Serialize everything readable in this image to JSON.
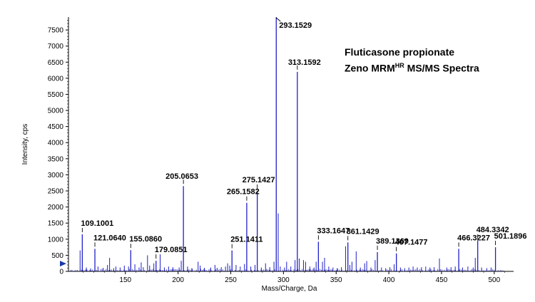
{
  "annotation": {
    "line1": "Fluticasone propionate",
    "line2_pre": "Zeno MRM",
    "line2_sup": "HR",
    "line2_post": " MS/MS Spectra"
  },
  "chart_data": {
    "type": "bar",
    "xlabel": "Mass/Charge, Da",
    "ylabel": "Intensity, cps",
    "xlim": [
      96,
      515
    ],
    "ylim": [
      0,
      7900
    ],
    "x_ticks": [
      150,
      200,
      250,
      300,
      350,
      400,
      450,
      500
    ],
    "y_ticks": [
      0,
      500,
      1000,
      1500,
      2000,
      2500,
      3000,
      3500,
      4000,
      4500,
      5000,
      5500,
      6000,
      6500,
      7000,
      7500
    ],
    "colors": {
      "peaks": "#2020c8",
      "labels": "#000000"
    },
    "labeled_peaks": [
      {
        "mz": 109.1001,
        "label": "109.1001",
        "intensity": 1150
      },
      {
        "mz": 121.064,
        "label": "121.0640",
        "intensity": 700
      },
      {
        "mz": 155.086,
        "label": "155.0860",
        "intensity": 660
      },
      {
        "mz": 179.0851,
        "label": "179.0851",
        "intensity": 330
      },
      {
        "mz": 205.0653,
        "label": "205.0653",
        "intensity": 2650
      },
      {
        "mz": 251.1411,
        "label": "251.1411",
        "intensity": 650
      },
      {
        "mz": 265.1582,
        "label": "265.1582",
        "intensity": 2130
      },
      {
        "mz": 275.1427,
        "label": "275.1427",
        "intensity": 2500
      },
      {
        "mz": 293.1529,
        "label": "293.1529",
        "intensity": 7900
      },
      {
        "mz": 313.1592,
        "label": "313.1592",
        "intensity": 6200
      },
      {
        "mz": 333.1647,
        "label": "333.1647",
        "intensity": 920
      },
      {
        "mz": 361.1429,
        "label": "361.1429",
        "intensity": 900
      },
      {
        "mz": 389.1369,
        "label": "389.1369",
        "intensity": 600
      },
      {
        "mz": 407.1477,
        "label": "407.1477",
        "intensity": 560
      },
      {
        "mz": 466.3227,
        "label": "466.3227",
        "intensity": 700
      },
      {
        "mz": 484.3342,
        "label": "484.3342",
        "intensity": 950
      },
      {
        "mz": 501.1896,
        "label": "501.1896",
        "intensity": 750
      }
    ],
    "unlabeled_peaks": [
      {
        "mz": 107.0,
        "intensity": 650
      },
      {
        "mz": 113.0,
        "intensity": 120
      },
      {
        "mz": 117.0,
        "intensity": 90
      },
      {
        "mz": 124.0,
        "intensity": 150
      },
      {
        "mz": 129.0,
        "intensity": 110
      },
      {
        "mz": 133.0,
        "intensity": 200
      },
      {
        "mz": 135.0,
        "intensity": 420
      },
      {
        "mz": 139.0,
        "intensity": 100
      },
      {
        "mz": 141.0,
        "intensity": 150
      },
      {
        "mz": 145.0,
        "intensity": 120
      },
      {
        "mz": 149.0,
        "intensity": 180
      },
      {
        "mz": 153.0,
        "intensity": 150
      },
      {
        "mz": 159.0,
        "intensity": 220
      },
      {
        "mz": 163.0,
        "intensity": 120
      },
      {
        "mz": 165.0,
        "intensity": 280
      },
      {
        "mz": 167.0,
        "intensity": 130
      },
      {
        "mz": 171.0,
        "intensity": 500
      },
      {
        "mz": 173.0,
        "intensity": 180
      },
      {
        "mz": 177.0,
        "intensity": 250
      },
      {
        "mz": 183.0,
        "intensity": 530
      },
      {
        "mz": 187.0,
        "intensity": 120
      },
      {
        "mz": 191.0,
        "intensity": 150
      },
      {
        "mz": 195.0,
        "intensity": 130
      },
      {
        "mz": 201.0,
        "intensity": 120
      },
      {
        "mz": 203.0,
        "intensity": 330
      },
      {
        "mz": 209.0,
        "intensity": 150
      },
      {
        "mz": 213.0,
        "intensity": 100
      },
      {
        "mz": 219.0,
        "intensity": 300
      },
      {
        "mz": 221.0,
        "intensity": 180
      },
      {
        "mz": 225.0,
        "intensity": 110
      },
      {
        "mz": 231.0,
        "intensity": 120
      },
      {
        "mz": 235.0,
        "intensity": 200
      },
      {
        "mz": 237.0,
        "intensity": 110
      },
      {
        "mz": 241.0,
        "intensity": 130
      },
      {
        "mz": 245.0,
        "intensity": 150
      },
      {
        "mz": 247.0,
        "intensity": 250
      },
      {
        "mz": 249.0,
        "intensity": 180
      },
      {
        "mz": 255.0,
        "intensity": 200
      },
      {
        "mz": 259.0,
        "intensity": 150
      },
      {
        "mz": 263.0,
        "intensity": 230
      },
      {
        "mz": 269.0,
        "intensity": 150
      },
      {
        "mz": 273.0,
        "intensity": 200
      },
      {
        "mz": 279.0,
        "intensity": 120
      },
      {
        "mz": 283.0,
        "intensity": 250
      },
      {
        "mz": 287.0,
        "intensity": 130
      },
      {
        "mz": 291.0,
        "intensity": 300
      },
      {
        "mz": 295.0,
        "intensity": 1800
      },
      {
        "mz": 297.0,
        "intensity": 150
      },
      {
        "mz": 301.0,
        "intensity": 120
      },
      {
        "mz": 303.0,
        "intensity": 300
      },
      {
        "mz": 307.0,
        "intensity": 150
      },
      {
        "mz": 311.0,
        "intensity": 350
      },
      {
        "mz": 315.0,
        "intensity": 400
      },
      {
        "mz": 319.0,
        "intensity": 350
      },
      {
        "mz": 321.0,
        "intensity": 300
      },
      {
        "mz": 325.0,
        "intensity": 150
      },
      {
        "mz": 329.0,
        "intensity": 120
      },
      {
        "mz": 331.0,
        "intensity": 300
      },
      {
        "mz": 337.0,
        "intensity": 300
      },
      {
        "mz": 339.0,
        "intensity": 420
      },
      {
        "mz": 343.0,
        "intensity": 150
      },
      {
        "mz": 347.0,
        "intensity": 120
      },
      {
        "mz": 351.0,
        "intensity": 100
      },
      {
        "mz": 355.0,
        "intensity": 130
      },
      {
        "mz": 359.0,
        "intensity": 780
      },
      {
        "mz": 363.0,
        "intensity": 200
      },
      {
        "mz": 365.0,
        "intensity": 300
      },
      {
        "mz": 369.0,
        "intensity": 620
      },
      {
        "mz": 373.0,
        "intensity": 120
      },
      {
        "mz": 377.0,
        "intensity": 250
      },
      {
        "mz": 379.0,
        "intensity": 320
      },
      {
        "mz": 383.0,
        "intensity": 120
      },
      {
        "mz": 387.0,
        "intensity": 350
      },
      {
        "mz": 393.0,
        "intensity": 120
      },
      {
        "mz": 397.0,
        "intensity": 100
      },
      {
        "mz": 401.0,
        "intensity": 130
      },
      {
        "mz": 405.0,
        "intensity": 220
      },
      {
        "mz": 411.0,
        "intensity": 120
      },
      {
        "mz": 415.0,
        "intensity": 100
      },
      {
        "mz": 419.0,
        "intensity": 120
      },
      {
        "mz": 423.0,
        "intensity": 150
      },
      {
        "mz": 427.0,
        "intensity": 120
      },
      {
        "mz": 431.0,
        "intensity": 130
      },
      {
        "mz": 435.0,
        "intensity": 150
      },
      {
        "mz": 439.0,
        "intensity": 120
      },
      {
        "mz": 443.0,
        "intensity": 130
      },
      {
        "mz": 448.0,
        "intensity": 400
      },
      {
        "mz": 455.0,
        "intensity": 120
      },
      {
        "mz": 459.0,
        "intensity": 130
      },
      {
        "mz": 463.0,
        "intensity": 150
      },
      {
        "mz": 470.0,
        "intensity": 120
      },
      {
        "mz": 475.0,
        "intensity": 150
      },
      {
        "mz": 480.0,
        "intensity": 120
      },
      {
        "mz": 482.0,
        "intensity": 420
      },
      {
        "mz": 488.0,
        "intensity": 120
      },
      {
        "mz": 493.0,
        "intensity": 100
      },
      {
        "mz": 497.0,
        "intensity": 120
      }
    ]
  }
}
